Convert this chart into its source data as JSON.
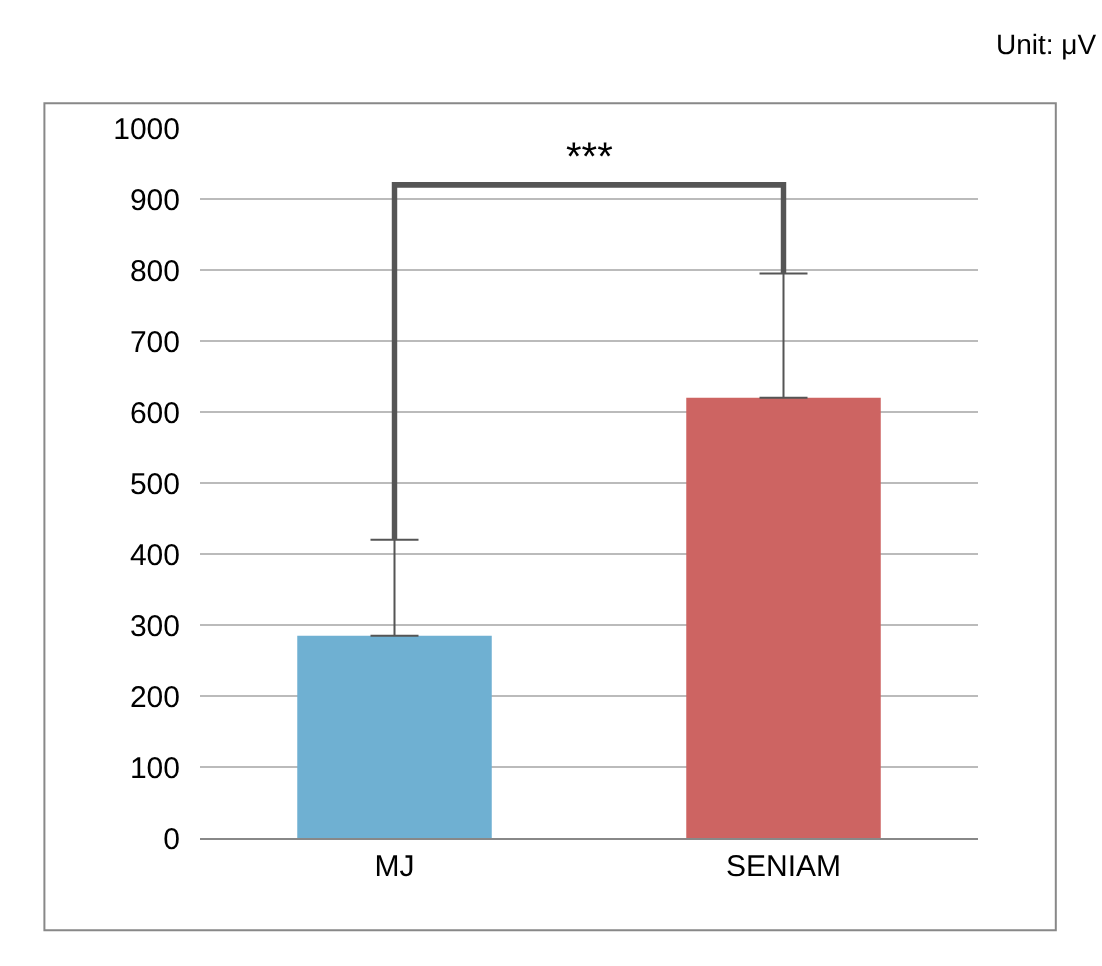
{
  "chart_data": {
    "type": "bar",
    "categories": [
      "MJ",
      "SENIAM"
    ],
    "values": [
      285,
      620
    ],
    "colors": [
      "#6fb0d2",
      "#cd6462"
    ],
    "errors": [
      [
        285,
        420
      ],
      [
        620,
        795
      ]
    ],
    "ylim": [
      0,
      1000
    ],
    "yticks": [
      0,
      100,
      200,
      300,
      400,
      500,
      600,
      700,
      800,
      900,
      1000
    ],
    "grid": "y",
    "annotations": [
      "Unit: μV",
      "***"
    ]
  }
}
